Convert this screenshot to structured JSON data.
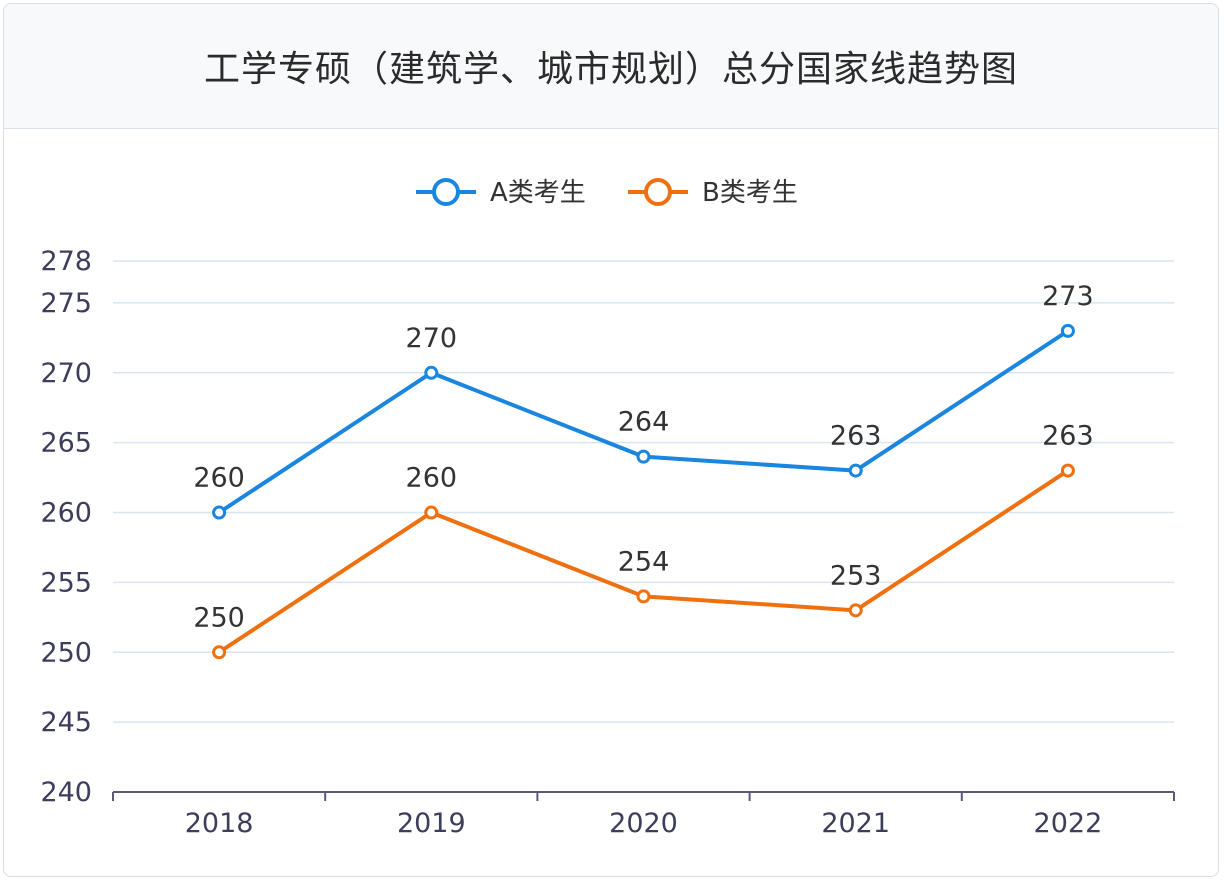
{
  "chart_data": {
    "type": "line",
    "title": "工学专硕（建筑学、城市规划）总分国家线趋势图",
    "categories": [
      "2018",
      "2019",
      "2020",
      "2021",
      "2022"
    ],
    "series": [
      {
        "name": "A类考生",
        "values": [
          260,
          270,
          264,
          263,
          273
        ],
        "color": "#1a86e0"
      },
      {
        "name": "B类考生",
        "values": [
          250,
          260,
          254,
          253,
          263
        ],
        "color": "#f07010"
      }
    ],
    "yticks": [
      240,
      245,
      250,
      255,
      260,
      265,
      270,
      275,
      278
    ],
    "ylim": [
      240,
      278
    ],
    "grid": true,
    "legend_position": "top-center",
    "data_labels": true
  }
}
